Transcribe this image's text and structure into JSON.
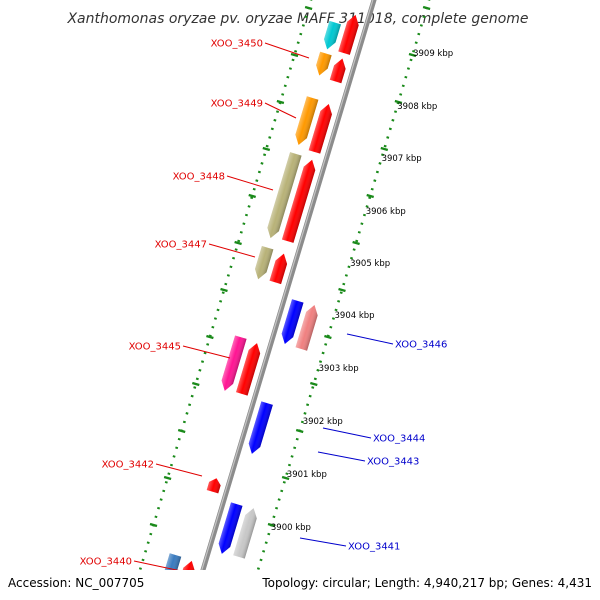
{
  "title": "Xanthomonas oryzae pv. oryzae MAFF 311018, complete genome",
  "accession": "Accession: NC_007705",
  "summary": "Topology: circular; Length: 4,940,217 bp; Genes: 4,431",
  "colors": {
    "backbone": "#8c8c8c",
    "tick": "#1a8a1a",
    "left_label": "#e00000",
    "right_label": "#0000cc"
  },
  "kbp_marks": [
    {
      "label": "3909 kbp",
      "pos": 3909
    },
    {
      "label": "3908 kbp",
      "pos": 3908
    },
    {
      "label": "3907 kbp",
      "pos": 3907
    },
    {
      "label": "3906 kbp",
      "pos": 3906
    },
    {
      "label": "3905 kbp",
      "pos": 3905
    },
    {
      "label": "3904 kbp",
      "pos": 3904
    },
    {
      "label": "3903 kbp",
      "pos": 3903
    },
    {
      "label": "3902 kbp",
      "pos": 3902
    },
    {
      "label": "3901 kbp",
      "pos": 3901
    },
    {
      "label": "3900 kbp",
      "pos": 3900
    }
  ],
  "genes": [
    {
      "color": "#00c8d2",
      "lane": 1,
      "dir": "plus"
    },
    {
      "color": "#ff0000",
      "lane": 2,
      "dir": "minus"
    },
    {
      "color": "#ff9900",
      "lane": 1,
      "dir": "plus"
    },
    {
      "color": "#ff0000",
      "lane": 2,
      "dir": "minus"
    },
    {
      "color": "#ff9900",
      "lane": 1,
      "dir": "plus"
    },
    {
      "color": "#ff0000",
      "lane": 2,
      "dir": "minus"
    },
    {
      "color": "#b8b278",
      "lane": 1,
      "dir": "plus"
    },
    {
      "color": "#ff0000",
      "lane": 2,
      "dir": "minus"
    },
    {
      "color": "#b8b278",
      "lane": 1,
      "dir": "plus"
    },
    {
      "color": "#ff0000",
      "lane": 2,
      "dir": "minus"
    },
    {
      "color": "#0000ff",
      "lane": 3,
      "dir": "plus"
    },
    {
      "color": "#f08080",
      "lane": 4,
      "dir": "minus"
    },
    {
      "color": "#ff1493",
      "lane": 1,
      "dir": "plus"
    },
    {
      "color": "#ff0000",
      "lane": 2,
      "dir": "minus"
    },
    {
      "color": "#0000ff",
      "lane": 3,
      "dir": "plus"
    },
    {
      "color": "#ff0000",
      "lane": 2,
      "dir": "minus"
    },
    {
      "color": "#0000ff",
      "lane": 3,
      "dir": "plus"
    },
    {
      "color": "#c8c8c8",
      "lane": 4,
      "dir": "minus"
    },
    {
      "color": "#3a7bbf",
      "lane": 1,
      "dir": "plus"
    },
    {
      "color": "#ff0000",
      "lane": 2,
      "dir": "minus"
    }
  ],
  "left_labels": [
    {
      "text": "XOO_3450"
    },
    {
      "text": "XOO_3449"
    },
    {
      "text": "XOO_3448"
    },
    {
      "text": "XOO_3447"
    },
    {
      "text": "XOO_3445"
    },
    {
      "text": "XOO_3442"
    },
    {
      "text": "XOO_3440"
    }
  ],
  "right_labels": [
    {
      "text": "XOO_3446"
    },
    {
      "text": "XOO_3444"
    },
    {
      "text": "XOO_3443"
    },
    {
      "text": "XOO_3441"
    }
  ]
}
